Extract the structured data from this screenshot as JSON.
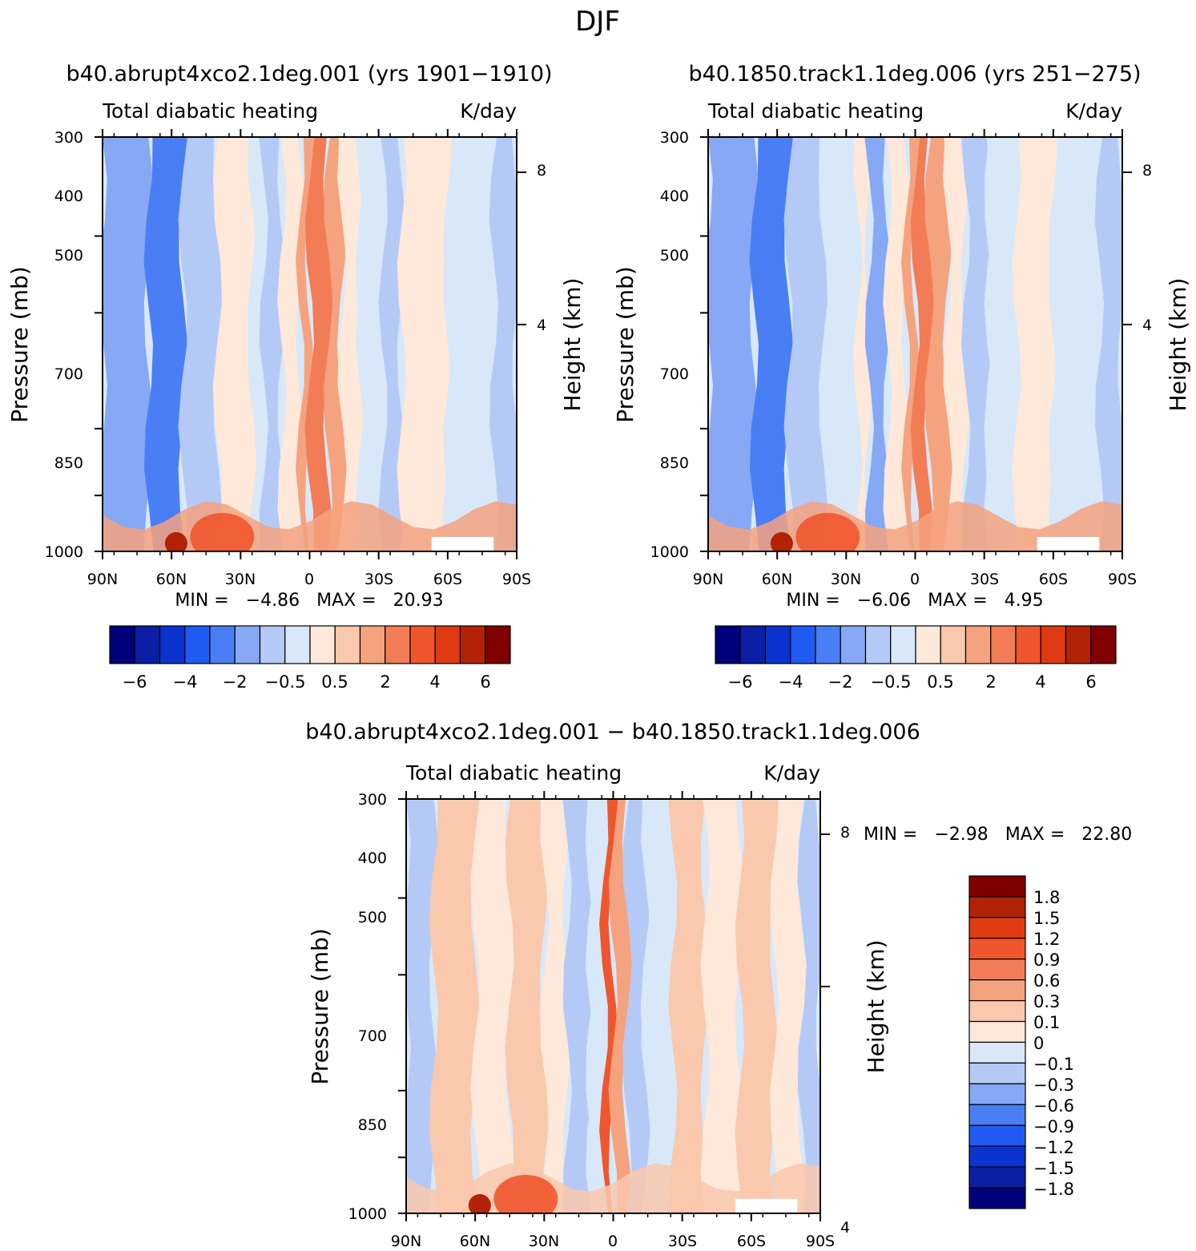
{
  "figure": {
    "title": "DJF"
  },
  "colors": {
    "panel_levels": [
      "#00007a",
      "#0a1fa6",
      "#0a33d0",
      "#1f5af2",
      "#4a7ef5",
      "#86a8f5",
      "#b5c9f7",
      "#d8e8f8",
      "#fde8d9",
      "#f9c8ad",
      "#f5a27f",
      "#f27c55",
      "#f0562e",
      "#e03a12",
      "#b22206",
      "#800000"
    ],
    "diff_levels": [
      "#00007a",
      "#0a1fa6",
      "#0a33d0",
      "#1f5af2",
      "#4a7ef5",
      "#86a8f5",
      "#b5c9f7",
      "#d8e8f8",
      "#fde8d9",
      "#f9c8ad",
      "#f5a27f",
      "#f27c55",
      "#f0562e",
      "#e03a12",
      "#b22206",
      "#800000"
    ]
  },
  "chart_data": [
    {
      "type": "heatmap",
      "title": "b40.abrupt4xco2.1deg.001 (yrs 1901−1910)",
      "subtitle_left": "Total diabatic heating",
      "subtitle_right": "K/day",
      "ylabel": "Pressure (mb)",
      "ylabel_right": "Height (km)",
      "x_ticks": [
        "90N",
        "60N",
        "30N",
        "0",
        "30S",
        "60S",
        "90S"
      ],
      "x_tick_values": [
        90,
        60,
        30,
        0,
        -30,
        -60,
        -90
      ],
      "y_ticks": [
        "300",
        "400",
        "500",
        "700",
        "850",
        "1000"
      ],
      "y_tick_values": [
        300,
        400,
        500,
        700,
        850,
        1000
      ],
      "y_right_ticks": [
        "8",
        "4"
      ],
      "y_right_tick_values": [
        8,
        4
      ],
      "y_log_scale": true,
      "min_text": "MIN =   −4.86   MAX =   20.93",
      "min": -4.86,
      "max": 20.93,
      "colorbar": {
        "orientation": "horizontal",
        "levels": [
          -7,
          -6,
          -5,
          -4,
          -3,
          -2,
          -1,
          -0.5,
          0,
          0.5,
          1,
          2,
          3,
          4,
          5,
          6,
          7
        ],
        "labels": [
          "−6",
          "−4",
          "−2",
          "−0.5",
          "0.5",
          "2",
          "4",
          "6"
        ]
      }
    },
    {
      "type": "heatmap",
      "title": "b40.1850.track1.1deg.006 (yrs 251−275)",
      "subtitle_left": "Total diabatic heating",
      "subtitle_right": "K/day",
      "ylabel": "Pressure (mb)",
      "ylabel_right": "Height (km)",
      "x_ticks": [
        "90N",
        "60N",
        "30N",
        "0",
        "30S",
        "60S",
        "90S"
      ],
      "x_tick_values": [
        90,
        60,
        30,
        0,
        -30,
        -60,
        -90
      ],
      "y_ticks": [
        "300",
        "400",
        "500",
        "700",
        "850",
        "1000"
      ],
      "y_tick_values": [
        300,
        400,
        500,
        700,
        850,
        1000
      ],
      "y_right_ticks": [
        "8",
        "4"
      ],
      "y_right_tick_values": [
        8,
        4
      ],
      "y_log_scale": true,
      "min_text": "MIN =   −6.06   MAX =   4.95",
      "min": -6.06,
      "max": 4.95,
      "colorbar": {
        "orientation": "horizontal",
        "levels": [
          -7,
          -6,
          -5,
          -4,
          -3,
          -2,
          -1,
          -0.5,
          0,
          0.5,
          1,
          2,
          3,
          4,
          5,
          6,
          7
        ],
        "labels": [
          "−6",
          "−4",
          "−2",
          "−0.5",
          "0.5",
          "2",
          "4",
          "6"
        ]
      }
    },
    {
      "type": "heatmap",
      "title": "b40.abrupt4xco2.1deg.001 − b40.1850.track1.1deg.006",
      "subtitle_left": "Total diabatic heating",
      "subtitle_right": "K/day",
      "ylabel": "Pressure (mb)",
      "ylabel_right": "Height (km)",
      "x_ticks": [
        "90N",
        "60N",
        "30N",
        "0",
        "30S",
        "60S",
        "90S"
      ],
      "x_tick_values": [
        90,
        60,
        30,
        0,
        -30,
        -60,
        -90
      ],
      "y_ticks": [
        "300",
        "400",
        "500",
        "700",
        "850",
        "1000"
      ],
      "y_tick_values": [
        300,
        400,
        500,
        700,
        850,
        1000
      ],
      "y_right_ticks": [
        "8",
        "4"
      ],
      "y_right_tick_values": [
        8,
        4
      ],
      "y_log_scale": true,
      "min_text": "MIN =   −2.98   MAX =   22.80",
      "min": -2.98,
      "max": 22.8,
      "colorbar": {
        "orientation": "vertical",
        "levels": [
          -2.1,
          -1.8,
          -1.5,
          -1.2,
          -0.9,
          -0.6,
          -0.3,
          -0.1,
          0,
          0.1,
          0.3,
          0.6,
          0.9,
          1.2,
          1.5,
          1.8,
          2.1
        ],
        "labels": [
          "1.8",
          "1.5",
          "1.2",
          "0.9",
          "0.6",
          "0.3",
          "0.1",
          "0",
          "−0.1",
          "−0.3",
          "−0.6",
          "−0.9",
          "−1.2",
          "−1.5",
          "−1.8"
        ]
      }
    }
  ]
}
